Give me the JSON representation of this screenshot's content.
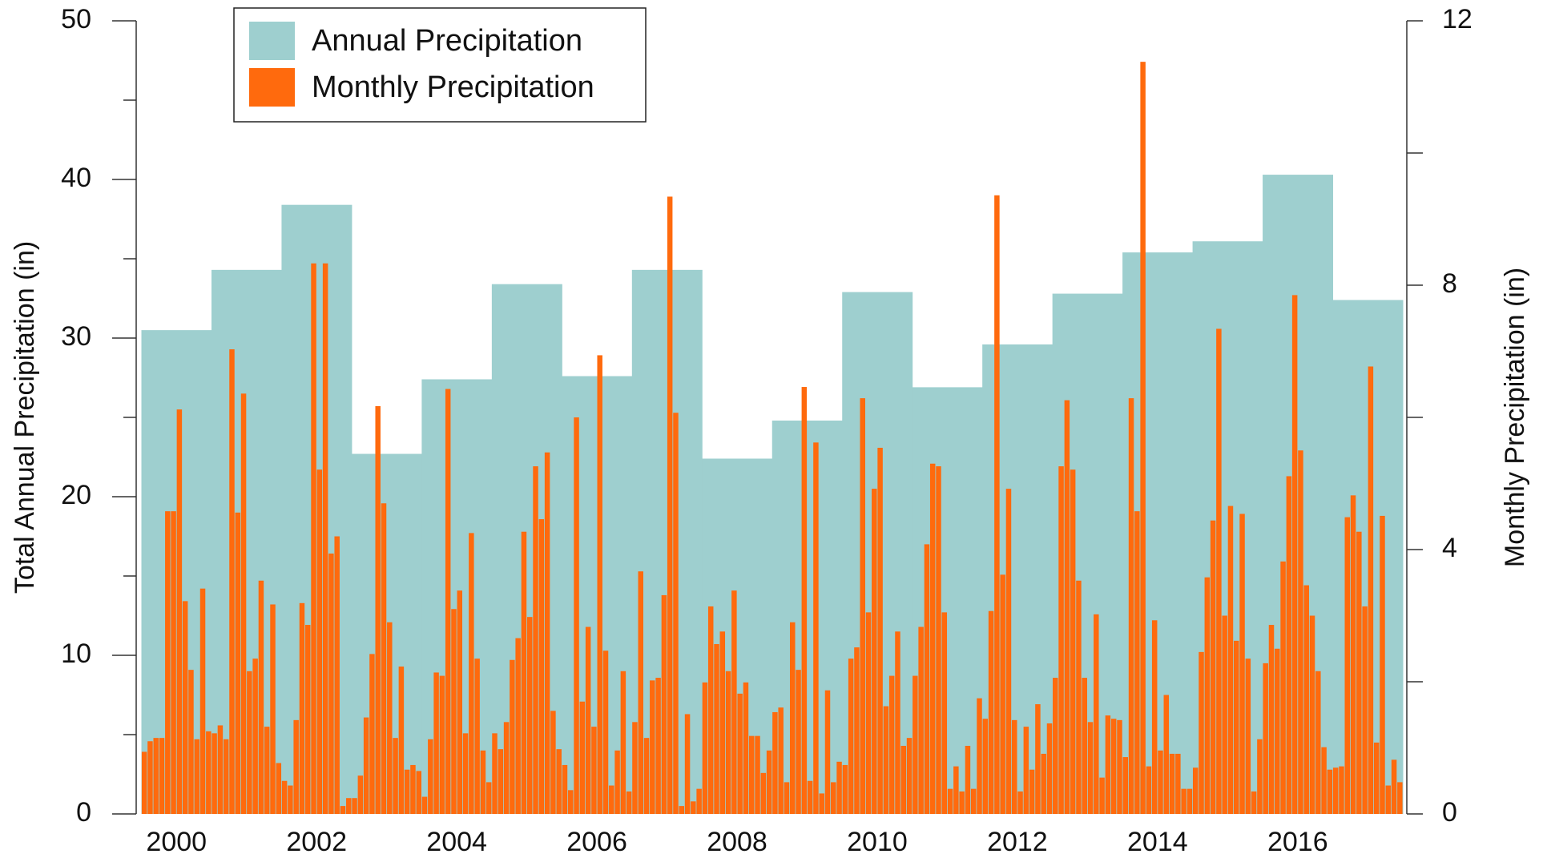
{
  "chart_data": {
    "type": "bar",
    "ylabel": "Total Annual Precipitation (in)",
    "y2label": "Monthly Precipitation (in)",
    "xlim": [
      1999.5,
      2017.5
    ],
    "xticks": [
      2000,
      2002,
      2004,
      2006,
      2008,
      2010,
      2012,
      2014,
      2016
    ],
    "ylim": [
      0,
      50
    ],
    "yticks": [
      0,
      10,
      20,
      30,
      40,
      50
    ],
    "yminorticks": [
      5,
      15,
      25,
      35,
      45
    ],
    "y2lim": [
      0,
      12
    ],
    "y2ticks": [
      0,
      4,
      8,
      12
    ],
    "y2minorticks": [
      2,
      6,
      10
    ],
    "legend": "upper left",
    "series": [
      {
        "name": "Annual Precipitation",
        "color": "#9ecfcf",
        "axis": "y",
        "x": [
          2000,
          2001,
          2002,
          2003,
          2004,
          2005,
          2006,
          2007,
          2008,
          2009,
          2010,
          2011,
          2012,
          2013,
          2014,
          2015,
          2016,
          2017
        ],
        "values": [
          30.5,
          34.3,
          38.4,
          22.7,
          27.4,
          33.4,
          27.6,
          34.3,
          22.4,
          24.8,
          32.9,
          26.9,
          29.6,
          32.8,
          35.4,
          36.1,
          40.3,
          32.4
        ]
      },
      {
        "name": "Monthly Precipitation",
        "color": "#ff6a0d",
        "axis": "y2",
        "values": [
          0.94,
          1.1,
          1.15,
          1.15,
          4.58,
          4.58,
          6.12,
          3.22,
          2.18,
          1.13,
          3.41,
          1.25,
          1.22,
          1.34,
          1.13,
          7.03,
          4.56,
          6.36,
          2.16,
          2.35,
          3.53,
          1.32,
          3.17,
          0.77,
          0.5,
          0.43,
          1.42,
          3.19,
          2.86,
          8.33,
          5.21,
          8.33,
          3.94,
          4.2,
          0.12,
          0.24,
          0.24,
          0.58,
          1.46,
          2.42,
          6.17,
          4.7,
          2.9,
          1.15,
          2.23,
          0.67,
          0.74,
          0.65,
          0.26,
          1.13,
          2.14,
          2.09,
          6.43,
          3.1,
          3.38,
          1.22,
          4.25,
          2.35,
          0.96,
          0.48,
          1.22,
          0.98,
          1.39,
          2.33,
          2.66,
          4.27,
          2.98,
          5.26,
          4.46,
          5.47,
          1.56,
          0.98,
          0.74,
          0.36,
          6.0,
          1.7,
          2.83,
          1.32,
          6.94,
          2.47,
          0.43,
          0.96,
          2.16,
          0.34,
          1.39,
          3.67,
          1.15,
          2.02,
          2.06,
          3.31,
          9.34,
          6.07,
          0.12,
          1.51,
          0.19,
          0.38,
          1.99,
          3.14,
          2.57,
          2.76,
          2.16,
          3.38,
          1.82,
          1.99,
          1.18,
          1.18,
          0.62,
          0.96,
          1.54,
          1.61,
          0.48,
          2.9,
          2.18,
          6.46,
          0.5,
          5.62,
          0.31,
          1.87,
          0.48,
          0.79,
          0.74,
          2.35,
          2.52,
          6.29,
          3.05,
          4.92,
          5.54,
          1.63,
          2.09,
          2.76,
          1.03,
          1.15,
          2.09,
          2.83,
          4.08,
          5.3,
          5.26,
          3.05,
          0.38,
          0.72,
          0.34,
          1.03,
          0.38,
          1.75,
          1.44,
          3.07,
          9.36,
          3.62,
          4.92,
          1.42,
          0.34,
          1.32,
          0.67,
          1.66,
          0.91,
          1.37,
          2.06,
          5.26,
          6.26,
          5.21,
          3.53,
          2.06,
          1.39,
          3.02,
          0.55,
          1.49,
          1.44,
          1.42,
          0.86,
          6.29,
          4.58,
          11.38,
          0.72,
          2.93,
          0.96,
          1.8,
          0.91,
          0.91,
          0.38,
          0.38,
          0.7,
          2.45,
          3.58,
          4.44,
          7.34,
          3.0,
          4.66,
          2.62,
          4.54,
          2.35,
          0.34,
          1.13,
          2.28,
          2.86,
          2.5,
          3.82,
          5.11,
          7.85,
          5.5,
          3.46,
          3.0,
          2.16,
          1.01,
          0.67,
          0.7,
          0.72,
          4.49,
          4.82,
          4.27,
          3.14,
          6.77,
          1.08,
          4.51,
          0.43,
          0.82,
          0.48
        ]
      }
    ]
  }
}
